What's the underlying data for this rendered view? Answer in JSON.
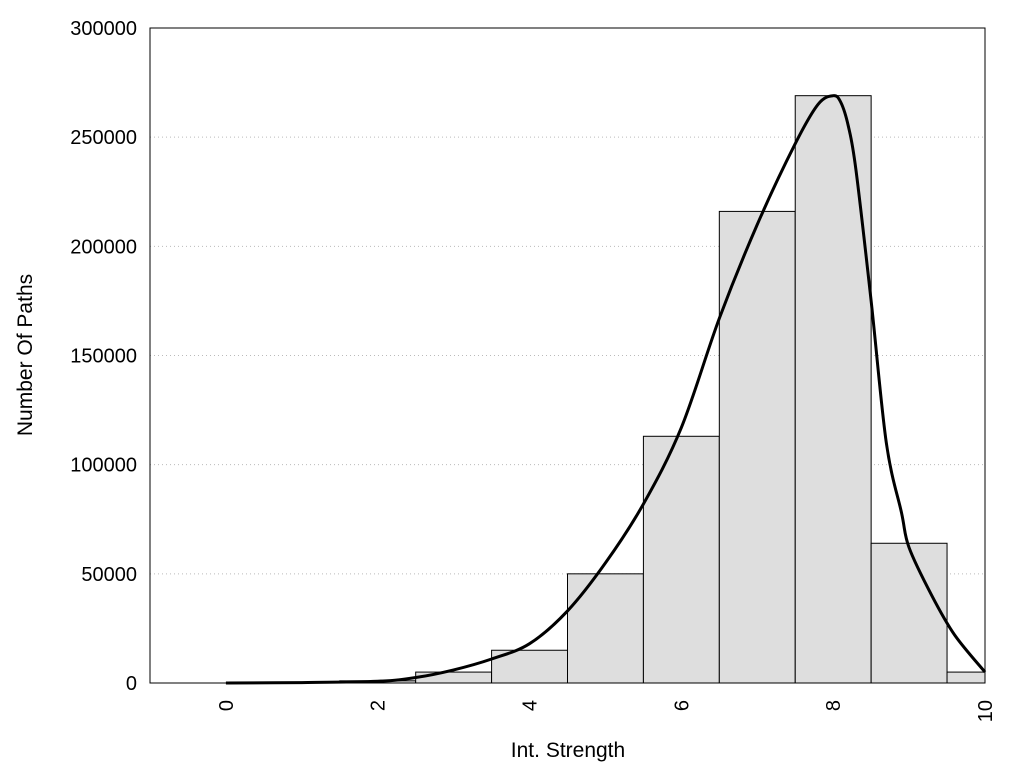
{
  "chart_data": {
    "type": "bar",
    "title": "",
    "xlabel": "Int. Strength",
    "ylabel": "Number Of Paths",
    "xlim": [
      -1,
      10
    ],
    "ylim": [
      0,
      300000
    ],
    "x_ticks": [
      "0",
      "2",
      "4",
      "6",
      "8",
      "10"
    ],
    "y_ticks": [
      "0",
      "50000",
      "100000",
      "150000",
      "200000",
      "250000",
      "300000"
    ],
    "grid": "horizontal dotted",
    "bar_color": "#dedede",
    "bars": [
      {
        "x": 0,
        "value": 0
      },
      {
        "x": 1,
        "value": 0
      },
      {
        "x": 2,
        "value": 1000
      },
      {
        "x": 3,
        "value": 5000
      },
      {
        "x": 4,
        "value": 15000
      },
      {
        "x": 5,
        "value": 50000
      },
      {
        "x": 6,
        "value": 113000
      },
      {
        "x": 7,
        "value": 216000
      },
      {
        "x": 8,
        "value": 269000
      },
      {
        "x": 9,
        "value": 64000
      },
      {
        "x": 10,
        "value": 5000
      }
    ],
    "curve": {
      "x": [
        0,
        1,
        2,
        2.5,
        3,
        3.5,
        4,
        4.5,
        5,
        5.5,
        6,
        6.5,
        7,
        7.5,
        7.8,
        8,
        8.1,
        8.2,
        8.3,
        8.5,
        8.7,
        8.9,
        9,
        9.3,
        9.6,
        10
      ],
      "y": [
        0,
        200,
        800,
        2500,
        6000,
        11000,
        18000,
        33000,
        55000,
        82000,
        117000,
        167000,
        210000,
        247000,
        265000,
        269000,
        266000,
        255000,
        235000,
        175000,
        110000,
        78000,
        62000,
        40000,
        22000,
        5000
      ]
    }
  }
}
